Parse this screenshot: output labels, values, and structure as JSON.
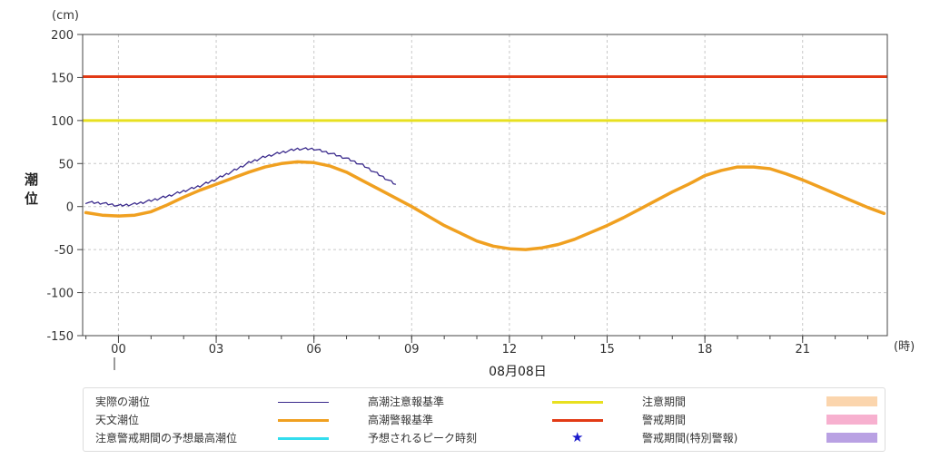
{
  "chart_data": {
    "type": "line",
    "ylabel": "潮位",
    "y_unit": "(cm)",
    "x_unit": "(時)",
    "date_label": "08月08日",
    "ylim": [
      -150,
      200
    ],
    "yticks": [
      200,
      150,
      100,
      50,
      0,
      -50,
      -100,
      -150
    ],
    "xlim": [
      -1.1,
      23.6
    ],
    "xticks": [
      0,
      3,
      6,
      9,
      12,
      15,
      18,
      21
    ],
    "xtick_labels": [
      "00",
      "03",
      "06",
      "09",
      "12",
      "15",
      "18",
      "21"
    ],
    "grid": true,
    "series": [
      {
        "name": "実際の潮位",
        "color": "#3a2a8c",
        "x": [
          -1.0,
          -0.5,
          0.0,
          0.5,
          1.0,
          1.5,
          2.0,
          2.5,
          3.0,
          3.5,
          4.0,
          4.5,
          5.0,
          5.5,
          6.0,
          6.5,
          7.0,
          7.5,
          8.0,
          8.5
        ],
        "values": [
          5,
          4,
          1,
          3,
          7,
          12,
          18,
          24,
          32,
          41,
          51,
          58,
          63,
          67,
          67,
          62,
          56,
          48,
          37,
          26
        ]
      },
      {
        "name": "天文潮位",
        "color": "#f0a020",
        "x": [
          -1.0,
          -0.5,
          0.0,
          0.5,
          1.0,
          1.5,
          2.0,
          2.5,
          3.0,
          3.5,
          4.0,
          4.5,
          5.0,
          5.5,
          6.0,
          6.5,
          7.0,
          7.5,
          8.0,
          8.5,
          9.0,
          9.5,
          10.0,
          10.5,
          11.0,
          11.5,
          12.0,
          12.5,
          13.0,
          13.5,
          14.0,
          14.5,
          15.0,
          15.5,
          16.0,
          16.5,
          17.0,
          17.5,
          18.0,
          18.5,
          19.0,
          19.5,
          20.0,
          20.5,
          21.0,
          21.5,
          22.0,
          22.5,
          23.0,
          23.5
        ],
        "values": [
          -7,
          -10,
          -11,
          -10,
          -6,
          2,
          11,
          19,
          26,
          33,
          40,
          46,
          50,
          52,
          51,
          47,
          40,
          30,
          20,
          10,
          0,
          -11,
          -22,
          -31,
          -40,
          -46,
          -49,
          -50,
          -48,
          -44,
          -38,
          -30,
          -22,
          -13,
          -3,
          7,
          17,
          26,
          36,
          42,
          46,
          46,
          44,
          38,
          31,
          23,
          15,
          7,
          -1,
          -8
        ]
      }
    ],
    "thresholds": [
      {
        "name": "高潮注意報基準",
        "value": 100,
        "color": "#e8e020"
      },
      {
        "name": "高潮警報基準",
        "value": 151,
        "color": "#e23a15"
      }
    ]
  },
  "legend": {
    "items": [
      {
        "label": "実際の潮位",
        "kind": "line",
        "color": "#3a2a8c"
      },
      {
        "label": "天文潮位",
        "kind": "line",
        "color": "#f0a020"
      },
      {
        "label": "注意警戒期間の予想最高潮位",
        "kind": "line",
        "color": "#33ddee"
      },
      {
        "label": "高潮注意報基準",
        "kind": "line",
        "color": "#e8e020"
      },
      {
        "label": "高潮警報基準",
        "kind": "line",
        "color": "#e23a15"
      },
      {
        "label": "予想されるピーク時刻",
        "kind": "star",
        "color": "#1a1acc",
        "symbol": "★"
      },
      {
        "label": "注意期間",
        "kind": "box",
        "color": "#fbd5ad"
      },
      {
        "label": "警戒期間",
        "kind": "box",
        "color": "#f7b0cf"
      },
      {
        "label": "警戒期間(特別警報)",
        "kind": "box",
        "color": "#b9a1e3"
      }
    ]
  }
}
